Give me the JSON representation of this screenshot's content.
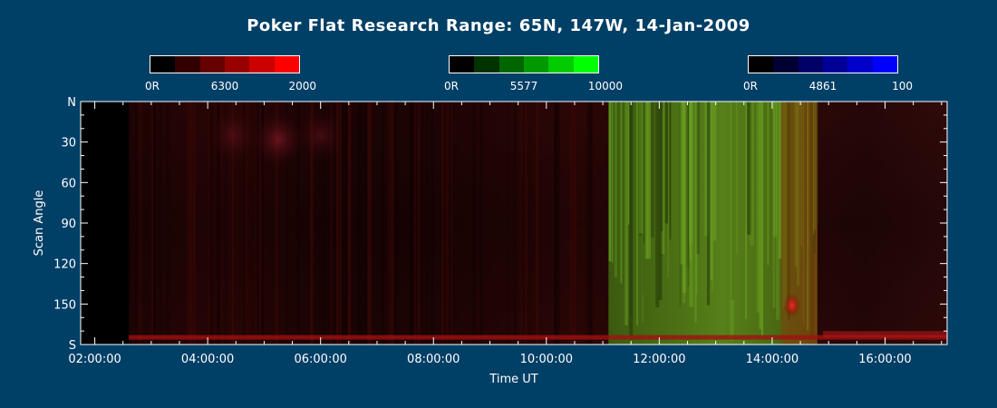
{
  "chart_data": {
    "type": "heatmap",
    "title": "Poker Flat Research Range: 65N, 147W, 14-Jan-2009",
    "xlabel": "Time UT",
    "ylabel": "Scan Angle",
    "x_ticks": [
      "02:00:00",
      "04:00:00",
      "06:00:00",
      "08:00:00",
      "10:00:00",
      "12:00:00",
      "14:00:00",
      "16:00:00"
    ],
    "x_tick_hours": [
      2,
      4,
      6,
      8,
      10,
      12,
      14,
      16
    ],
    "xlim_hours": [
      1.75,
      17.1
    ],
    "y_ticks": [
      "N",
      "30",
      "60",
      "90",
      "120",
      "150",
      "S"
    ],
    "y_tick_values": [
      0,
      30,
      60,
      90,
      120,
      150,
      180
    ],
    "ylim": [
      0,
      180
    ],
    "colorbars": [
      {
        "channel": "6300",
        "min_label": "0R",
        "max_label": "2000",
        "colors": [
          "#000000",
          "#330000",
          "#660000",
          "#990000",
          "#cc0000",
          "#ff0000"
        ]
      },
      {
        "channel": "5577",
        "min_label": "0R",
        "max_label": "10000",
        "colors": [
          "#000000",
          "#003300",
          "#006600",
          "#009900",
          "#00cc00",
          "#00ff00"
        ]
      },
      {
        "channel": "4861",
        "min_label": "0R",
        "max_label": "100",
        "colors": [
          "#000000",
          "#000033",
          "#000066",
          "#000099",
          "#0000cc",
          "#0000ff"
        ]
      }
    ],
    "data_start_hour": 2.6,
    "green_aurora_hours": [
      11.1,
      14.8
    ],
    "red_spot": {
      "hour": 14.35,
      "angle": 151
    },
    "grid": false,
    "colors": {
      "background": "#003f66",
      "axes": "#ffffff"
    }
  }
}
